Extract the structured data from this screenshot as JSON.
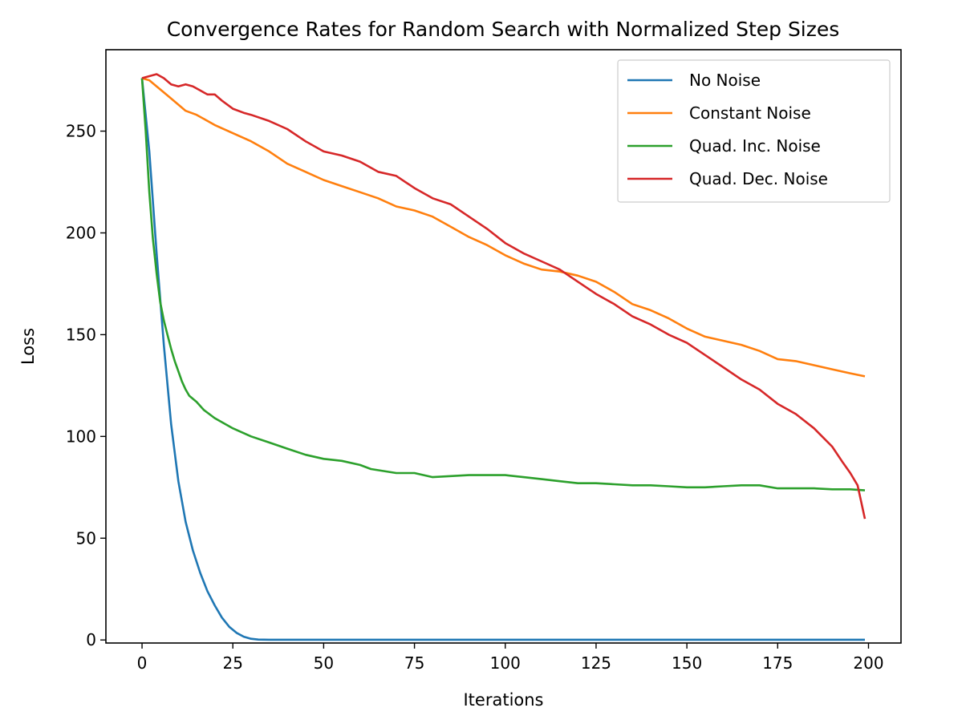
{
  "chart_data": {
    "type": "line",
    "title": "Convergence Rates for Random Search with Normalized Step Sizes",
    "xlabel": "Iterations",
    "ylabel": "Loss",
    "xlim": [
      -9.95,
      208.95
    ],
    "ylim": [
      -1.5,
      290
    ],
    "xticks": [
      0,
      25,
      50,
      75,
      100,
      125,
      150,
      175,
      200
    ],
    "yticks": [
      0,
      50,
      100,
      150,
      200,
      250
    ],
    "grid": false,
    "legend_position": "top-right",
    "series": [
      {
        "name": "No Noise",
        "color": "#1f77b4",
        "points": [
          [
            0,
            276
          ],
          [
            2,
            240
          ],
          [
            4,
            190
          ],
          [
            6,
            145
          ],
          [
            8,
            106
          ],
          [
            10,
            78
          ],
          [
            12,
            58
          ],
          [
            14,
            44
          ],
          [
            16,
            33
          ],
          [
            18,
            24
          ],
          [
            20,
            17
          ],
          [
            22,
            11
          ],
          [
            24,
            6.5
          ],
          [
            26,
            3.5
          ],
          [
            28,
            1.6
          ],
          [
            30,
            0.6
          ],
          [
            32,
            0.2
          ],
          [
            35,
            0.1
          ],
          [
            50,
            0.1
          ],
          [
            75,
            0.1
          ],
          [
            100,
            0.1
          ],
          [
            125,
            0.1
          ],
          [
            150,
            0.1
          ],
          [
            175,
            0.1
          ],
          [
            199,
            0.1
          ]
        ]
      },
      {
        "name": "Constant Noise",
        "color": "#ff7f0e",
        "points": [
          [
            0,
            276
          ],
          [
            2,
            275
          ],
          [
            4,
            272
          ],
          [
            6,
            269
          ],
          [
            8,
            266
          ],
          [
            10,
            263
          ],
          [
            12,
            260
          ],
          [
            15,
            258
          ],
          [
            20,
            253
          ],
          [
            25,
            249
          ],
          [
            30,
            245
          ],
          [
            35,
            240
          ],
          [
            40,
            234
          ],
          [
            45,
            230
          ],
          [
            50,
            226
          ],
          [
            55,
            223
          ],
          [
            60,
            220
          ],
          [
            65,
            217
          ],
          [
            70,
            213
          ],
          [
            75,
            211
          ],
          [
            80,
            208
          ],
          [
            85,
            203
          ],
          [
            90,
            198
          ],
          [
            95,
            194
          ],
          [
            100,
            189
          ],
          [
            105,
            185
          ],
          [
            110,
            182
          ],
          [
            115,
            181
          ],
          [
            120,
            179
          ],
          [
            125,
            176
          ],
          [
            130,
            171
          ],
          [
            135,
            165
          ],
          [
            140,
            162
          ],
          [
            145,
            158
          ],
          [
            150,
            153
          ],
          [
            155,
            149
          ],
          [
            160,
            147
          ],
          [
            165,
            145
          ],
          [
            170,
            142
          ],
          [
            175,
            138
          ],
          [
            180,
            137
          ],
          [
            185,
            135
          ],
          [
            190,
            133
          ],
          [
            195,
            131
          ],
          [
            199,
            129.5
          ]
        ]
      },
      {
        "name": "Quad. Inc. Noise",
        "color": "#2ca02c",
        "points": [
          [
            0,
            276
          ],
          [
            1,
            250
          ],
          [
            2,
            220
          ],
          [
            3,
            197
          ],
          [
            4,
            180
          ],
          [
            5,
            166
          ],
          [
            6,
            157
          ],
          [
            7,
            150
          ],
          [
            8,
            143
          ],
          [
            9,
            137
          ],
          [
            10,
            132
          ],
          [
            11,
            127
          ],
          [
            12,
            123
          ],
          [
            13,
            120
          ],
          [
            15,
            117
          ],
          [
            17,
            113
          ],
          [
            20,
            109
          ],
          [
            25,
            104
          ],
          [
            30,
            100
          ],
          [
            35,
            97
          ],
          [
            40,
            94
          ],
          [
            45,
            91
          ],
          [
            50,
            89
          ],
          [
            55,
            88
          ],
          [
            60,
            86
          ],
          [
            63,
            84
          ],
          [
            70,
            82
          ],
          [
            75,
            82
          ],
          [
            80,
            80
          ],
          [
            85,
            80.5
          ],
          [
            90,
            81
          ],
          [
            95,
            81
          ],
          [
            100,
            81
          ],
          [
            105,
            80
          ],
          [
            110,
            79
          ],
          [
            115,
            78
          ],
          [
            120,
            77
          ],
          [
            125,
            77
          ],
          [
            130,
            76.5
          ],
          [
            135,
            76
          ],
          [
            140,
            76
          ],
          [
            145,
            75.5
          ],
          [
            150,
            75
          ],
          [
            155,
            75
          ],
          [
            160,
            75.5
          ],
          [
            165,
            76
          ],
          [
            170,
            76
          ],
          [
            175,
            74.5
          ],
          [
            180,
            74.5
          ],
          [
            185,
            74.5
          ],
          [
            190,
            74
          ],
          [
            195,
            74
          ],
          [
            199,
            73.5
          ]
        ]
      },
      {
        "name": "Quad. Dec. Noise",
        "color": "#d62728",
        "points": [
          [
            0,
            276
          ],
          [
            2,
            277
          ],
          [
            4,
            278
          ],
          [
            6,
            276
          ],
          [
            8,
            273
          ],
          [
            10,
            272
          ],
          [
            12,
            273
          ],
          [
            14,
            272
          ],
          [
            16,
            270
          ],
          [
            18,
            268
          ],
          [
            20,
            268
          ],
          [
            22,
            265
          ],
          [
            25,
            261
          ],
          [
            28,
            259
          ],
          [
            30,
            258
          ],
          [
            35,
            255
          ],
          [
            40,
            251
          ],
          [
            45,
            245
          ],
          [
            50,
            240
          ],
          [
            55,
            238
          ],
          [
            60,
            235
          ],
          [
            65,
            230
          ],
          [
            70,
            228
          ],
          [
            75,
            222
          ],
          [
            80,
            217
          ],
          [
            85,
            214
          ],
          [
            90,
            208
          ],
          [
            95,
            202
          ],
          [
            100,
            195
          ],
          [
            105,
            190
          ],
          [
            110,
            186
          ],
          [
            115,
            182
          ],
          [
            120,
            176
          ],
          [
            125,
            170
          ],
          [
            130,
            165
          ],
          [
            135,
            159
          ],
          [
            140,
            155
          ],
          [
            145,
            150
          ],
          [
            150,
            146
          ],
          [
            155,
            140
          ],
          [
            160,
            134
          ],
          [
            165,
            128
          ],
          [
            170,
            123
          ],
          [
            175,
            116
          ],
          [
            180,
            111
          ],
          [
            185,
            104
          ],
          [
            190,
            95
          ],
          [
            193,
            87
          ],
          [
            195,
            82
          ],
          [
            197,
            76
          ],
          [
            199,
            59.5
          ]
        ]
      }
    ]
  }
}
